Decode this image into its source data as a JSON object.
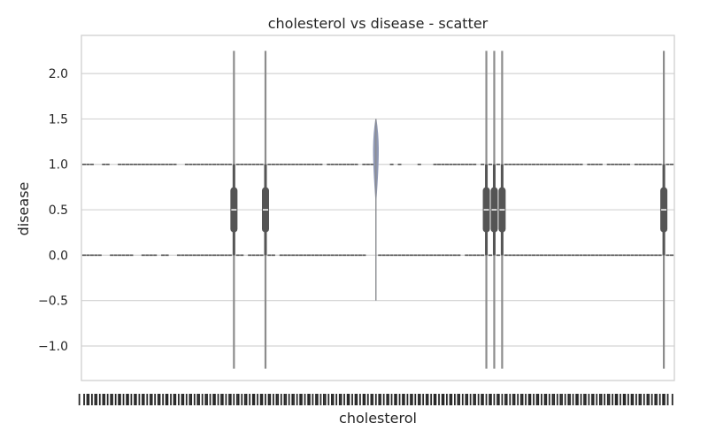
{
  "chart_data": {
    "type": "violin",
    "title": "cholesterol vs disease - scatter",
    "xlabel": "cholesterol",
    "ylabel": "disease",
    "ylim": [
      -1.38,
      2.42
    ],
    "yticks": [
      -1.0,
      -0.5,
      0.0,
      0.5,
      1.0,
      1.5,
      2.0
    ],
    "ytick_labels": [
      "−1.0",
      "−0.5",
      "0.0",
      "0.5",
      "1.0",
      "1.5",
      "2.0"
    ],
    "grid": true,
    "x_axis_note": "about 150 overlapping categorical cholesterol tick labels (illegible)",
    "colors": {
      "violin": "#8c8c8c",
      "solo_violin": "#8f98b4",
      "box": "#555555",
      "marks": "#4d4d4d",
      "grid": "#d3d3d3"
    },
    "category_count": 150,
    "wide_violins": [
      {
        "slot": 38,
        "min": -1.25,
        "q1": 0.25,
        "median": 0.5,
        "q3": 0.75,
        "max": 2.25
      },
      {
        "slot": 46,
        "min": -1.25,
        "q1": 0.25,
        "median": 0.5,
        "q3": 0.75,
        "max": 2.25
      },
      {
        "slot": 102,
        "min": -1.25,
        "q1": 0.25,
        "median": 0.5,
        "q3": 0.75,
        "max": 2.25
      },
      {
        "slot": 104,
        "min": -1.25,
        "q1": 0.25,
        "median": 0.5,
        "q3": 0.75,
        "max": 2.25
      },
      {
        "slot": 106,
        "min": -1.25,
        "q1": 0.25,
        "median": 0.5,
        "q3": 0.75,
        "max": 2.25
      },
      {
        "slot": 147,
        "min": -1.25,
        "q1": 0.25,
        "median": 0.5,
        "q3": 0.75,
        "max": 2.25
      }
    ],
    "solo_violin": {
      "slot": 74,
      "value": 1.0,
      "min": -0.5,
      "max": 1.5
    },
    "series_at_1": [
      0,
      1,
      2,
      5,
      6,
      9,
      10,
      11,
      12,
      13,
      14,
      15,
      16,
      17,
      18,
      19,
      20,
      21,
      22,
      23,
      26,
      27,
      28,
      29,
      30,
      31,
      32,
      33,
      34,
      35,
      36,
      37,
      39,
      40,
      41,
      42,
      43,
      44,
      45,
      47,
      48,
      49,
      50,
      51,
      52,
      53,
      54,
      55,
      56,
      57,
      58,
      59,
      60,
      62,
      63,
      64,
      65,
      66,
      67,
      68,
      69,
      71,
      72,
      73,
      78,
      80,
      85,
      89,
      90,
      91,
      92,
      93,
      94,
      95,
      96,
      97,
      98,
      99,
      101,
      103,
      105,
      107,
      108,
      109,
      110,
      111,
      112,
      113,
      114,
      115,
      116,
      117,
      118,
      119,
      120,
      121,
      122,
      123,
      124,
      125,
      126,
      128,
      129,
      130,
      131,
      133,
      134,
      135,
      136,
      137,
      138,
      140,
      141,
      142,
      143,
      144,
      145,
      146,
      148,
      149
    ],
    "series_at_0": [
      0,
      1,
      2,
      3,
      4,
      7,
      8,
      9,
      10,
      11,
      12,
      15,
      16,
      17,
      18,
      20,
      21,
      24,
      25,
      26,
      27,
      28,
      29,
      30,
      31,
      32,
      33,
      34,
      35,
      36,
      37,
      39,
      40,
      42,
      43,
      44,
      45,
      47,
      48,
      50,
      51,
      52,
      53,
      54,
      55,
      56,
      57,
      58,
      59,
      60,
      61,
      62,
      63,
      64,
      65,
      66,
      67,
      68,
      69,
      70,
      71,
      75,
      76,
      77,
      78,
      79,
      80,
      81,
      82,
      83,
      84,
      85,
      86,
      87,
      88,
      89,
      90,
      91,
      92,
      93,
      94,
      95,
      97,
      98,
      99,
      100,
      101,
      103,
      105,
      107,
      108,
      109,
      110,
      111,
      112,
      113,
      114,
      115,
      116,
      117,
      118,
      119,
      120,
      121,
      122,
      123,
      124,
      125,
      126,
      127,
      128,
      129,
      130,
      131,
      132,
      133,
      134,
      135,
      136,
      137,
      138,
      139,
      140,
      141,
      142,
      143,
      144,
      145,
      146,
      148,
      149
    ]
  }
}
